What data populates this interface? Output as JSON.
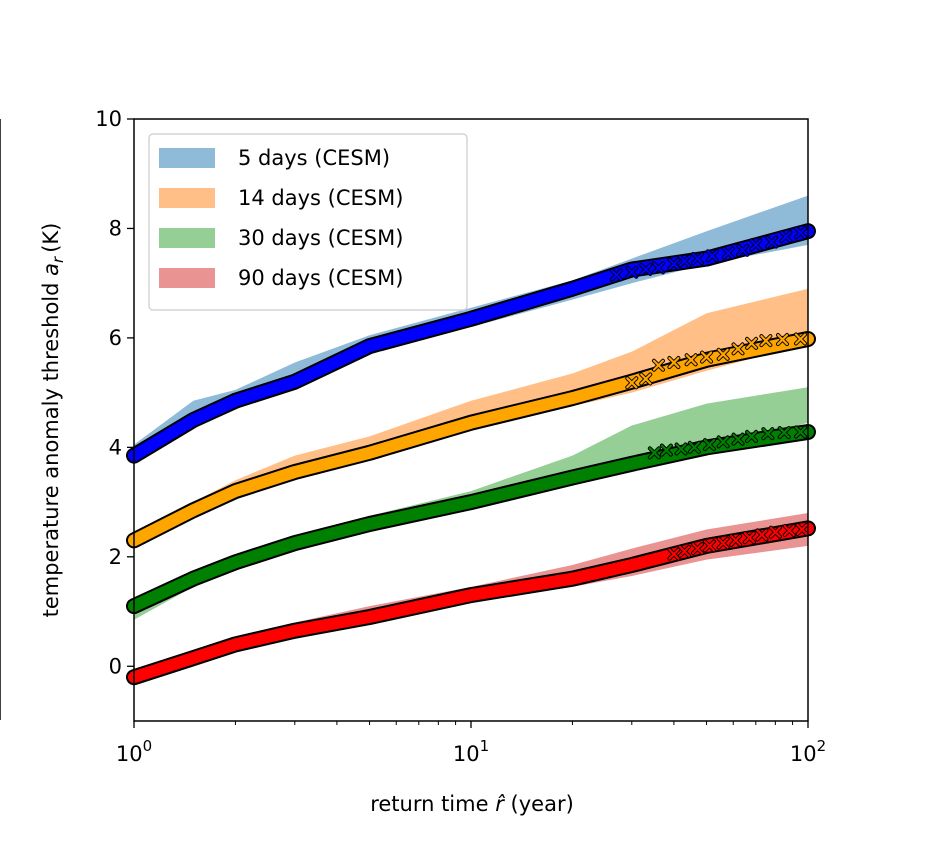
{
  "chart_data": {
    "type": "line",
    "xscale": "log",
    "xlim": [
      1,
      100
    ],
    "ylim": [
      -1,
      10
    ],
    "xlabel": "return time",
    "xlabel_symbol": "r̂",
    "xlabel_unit": "(year)",
    "ylabel": "temperature anomaly threshold",
    "ylabel_symbol": "a",
    "ylabel_sub": "r",
    "ylabel_unit": "(K)",
    "x_ticks": [
      {
        "value": 1,
        "base": "10",
        "exp": "0"
      },
      {
        "value": 10,
        "base": "10",
        "exp": "1"
      },
      {
        "value": 100,
        "base": "10",
        "exp": "2"
      }
    ],
    "y_ticks": [
      0,
      2,
      4,
      6,
      8,
      10
    ],
    "legend_position": "upper-left",
    "series": [
      {
        "name": "5 days (CESM)",
        "band_color": "#1f77b4",
        "marker_color": "#0000ff",
        "band": [
          [
            1,
            3.75,
            4.05
          ],
          [
            1.5,
            4.35,
            4.85
          ],
          [
            2,
            4.75,
            5.05
          ],
          [
            3,
            5.1,
            5.55
          ],
          [
            5,
            5.75,
            6.05
          ],
          [
            10,
            6.2,
            6.55
          ],
          [
            20,
            6.7,
            7.05
          ],
          [
            30,
            7.0,
            7.45
          ],
          [
            50,
            7.35,
            7.95
          ],
          [
            100,
            7.7,
            8.6
          ]
        ],
        "line": [
          [
            1,
            3.85
          ],
          [
            1.5,
            4.5
          ],
          [
            2,
            4.85
          ],
          [
            3,
            5.2
          ],
          [
            5,
            5.85
          ],
          [
            10,
            6.35
          ],
          [
            20,
            6.9
          ],
          [
            30,
            7.25
          ],
          [
            50,
            7.45
          ],
          [
            100,
            7.95
          ]
        ],
        "crosses": [
          [
            27,
            7.15
          ],
          [
            30,
            7.2
          ],
          [
            33,
            7.25
          ],
          [
            36,
            7.28
          ],
          [
            40,
            7.35
          ],
          [
            43,
            7.4
          ],
          [
            47,
            7.45
          ],
          [
            52,
            7.5
          ],
          [
            58,
            7.55
          ],
          [
            64,
            7.6
          ],
          [
            70,
            7.7
          ],
          [
            78,
            7.75
          ],
          [
            86,
            7.85
          ],
          [
            95,
            7.92
          ]
        ]
      },
      {
        "name": "14 days (CESM)",
        "band_color": "#ff7f0e",
        "marker_color": "#ffa500",
        "band": [
          [
            1,
            2.2,
            2.45
          ],
          [
            1.5,
            2.75,
            3.0
          ],
          [
            2,
            3.1,
            3.4
          ],
          [
            3,
            3.45,
            3.85
          ],
          [
            5,
            3.8,
            4.2
          ],
          [
            10,
            4.3,
            4.85
          ],
          [
            20,
            4.75,
            5.35
          ],
          [
            30,
            5.0,
            5.75
          ],
          [
            50,
            5.4,
            6.45
          ],
          [
            100,
            5.9,
            6.9
          ]
        ],
        "line": [
          [
            1,
            2.3
          ],
          [
            1.5,
            2.85
          ],
          [
            2,
            3.2
          ],
          [
            3,
            3.55
          ],
          [
            5,
            3.9
          ],
          [
            10,
            4.45
          ],
          [
            20,
            4.9
          ],
          [
            30,
            5.2
          ],
          [
            50,
            5.6
          ],
          [
            100,
            5.98
          ]
        ],
        "crosses": [
          [
            30,
            5.18
          ],
          [
            33,
            5.25
          ],
          [
            36,
            5.5
          ],
          [
            40,
            5.55
          ],
          [
            45,
            5.6
          ],
          [
            50,
            5.65
          ],
          [
            56,
            5.7
          ],
          [
            62,
            5.8
          ],
          [
            68,
            5.9
          ],
          [
            75,
            5.95
          ],
          [
            84,
            5.97
          ],
          [
            95,
            5.98
          ]
        ]
      },
      {
        "name": "30 days (CESM)",
        "band_color": "#2ca02c",
        "marker_color": "#008000",
        "band": [
          [
            1,
            0.85,
            1.25
          ],
          [
            1.5,
            1.45,
            1.75
          ],
          [
            2,
            1.8,
            2.05
          ],
          [
            3,
            2.1,
            2.4
          ],
          [
            5,
            2.5,
            2.75
          ],
          [
            10,
            2.85,
            3.2
          ],
          [
            20,
            3.3,
            3.85
          ],
          [
            30,
            3.6,
            4.4
          ],
          [
            50,
            3.95,
            4.8
          ],
          [
            100,
            4.45,
            5.1
          ]
        ],
        "line": [
          [
            1,
            1.1
          ],
          [
            1.5,
            1.6
          ],
          [
            2,
            1.9
          ],
          [
            3,
            2.25
          ],
          [
            5,
            2.6
          ],
          [
            10,
            3.0
          ],
          [
            20,
            3.45
          ],
          [
            30,
            3.7
          ],
          [
            50,
            4.0
          ],
          [
            100,
            4.28
          ]
        ],
        "crosses": [
          [
            35,
            3.9
          ],
          [
            38,
            3.95
          ],
          [
            42,
            3.97
          ],
          [
            46,
            4.0
          ],
          [
            51,
            4.05
          ],
          [
            56,
            4.1
          ],
          [
            62,
            4.15
          ],
          [
            68,
            4.2
          ],
          [
            76,
            4.25
          ],
          [
            85,
            4.27
          ],
          [
            95,
            4.28
          ]
        ]
      },
      {
        "name": "90 days (CESM)",
        "band_color": "#d62728",
        "marker_color": "#ff0000",
        "band": [
          [
            1,
            -0.35,
            -0.05
          ],
          [
            1.5,
            0.0,
            0.3
          ],
          [
            2,
            0.3,
            0.5
          ],
          [
            3,
            0.5,
            0.8
          ],
          [
            5,
            0.8,
            1.1
          ],
          [
            10,
            1.2,
            1.45
          ],
          [
            20,
            1.45,
            1.85
          ],
          [
            30,
            1.65,
            2.15
          ],
          [
            50,
            1.95,
            2.5
          ],
          [
            100,
            2.2,
            2.8
          ]
        ],
        "line": [
          [
            1,
            -0.2
          ],
          [
            1.5,
            0.15
          ],
          [
            2,
            0.4
          ],
          [
            3,
            0.65
          ],
          [
            5,
            0.9
          ],
          [
            10,
            1.3
          ],
          [
            20,
            1.6
          ],
          [
            30,
            1.85
          ],
          [
            50,
            2.2
          ],
          [
            100,
            2.52
          ]
        ],
        "crosses": [
          [
            40,
            2.05
          ],
          [
            43,
            2.1
          ],
          [
            47,
            2.15
          ],
          [
            51,
            2.2
          ],
          [
            56,
            2.25
          ],
          [
            61,
            2.3
          ],
          [
            67,
            2.35
          ],
          [
            73,
            2.4
          ],
          [
            80,
            2.45
          ],
          [
            88,
            2.48
          ],
          [
            96,
            2.5
          ]
        ]
      }
    ]
  }
}
